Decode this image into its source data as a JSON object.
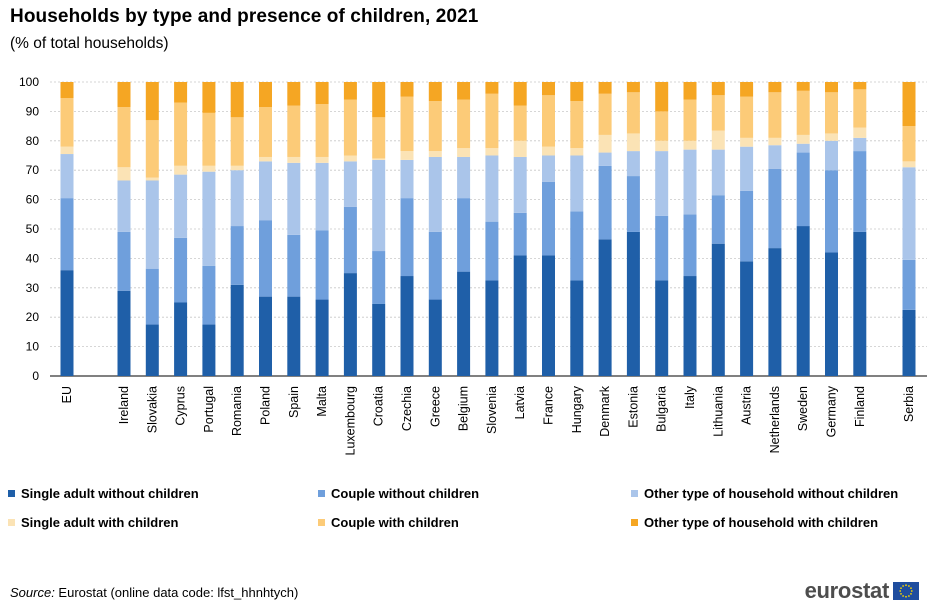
{
  "header": {
    "title": "Households by type and presence of children, 2021",
    "subtitle": "(% of total households)"
  },
  "chart_data": {
    "type": "bar",
    "stacked": true,
    "title": "Households by type and presence of children, 2021",
    "subtitle": "(% of total households)",
    "ylim": [
      0,
      100
    ],
    "yticks": [
      0,
      10,
      20,
      30,
      40,
      50,
      60,
      70,
      80,
      90,
      100
    ],
    "grid": true,
    "legend_position": "bottom",
    "categories": [
      "EU",
      "Ireland",
      "Slovakia",
      "Cyprus",
      "Portugal",
      "Romania",
      "Poland",
      "Spain",
      "Malta",
      "Luxembourg",
      "Croatia",
      "Czechia",
      "Greece",
      "Belgium",
      "Slovenia",
      "Latvia",
      "France",
      "Hungary",
      "Denmark",
      "Estonia",
      "Bulgaria",
      "Italy",
      "Lithuania",
      "Austria",
      "Netherlands",
      "Sweden",
      "Germany",
      "Finland",
      "Serbia"
    ],
    "series": [
      {
        "name": "Single adult without children",
        "color": "#1f5fa8",
        "values": [
          36,
          29,
          17.5,
          25,
          17.5,
          31,
          27,
          27,
          26,
          35,
          24.5,
          34,
          26,
          35.5,
          32.5,
          41,
          41,
          32.5,
          46.5,
          49,
          32.5,
          34,
          45,
          39,
          43.5,
          51,
          42,
          49,
          22.5
        ]
      },
      {
        "name": "Couple without children",
        "color": "#6f9fdc",
        "values": [
          24.5,
          20,
          19,
          22,
          20,
          20,
          26,
          21,
          23.5,
          22.5,
          18,
          26.5,
          23,
          25,
          20,
          14.5,
          25,
          23.5,
          25,
          19,
          22,
          21,
          16.5,
          24,
          27,
          25,
          28,
          27.5,
          17
        ]
      },
      {
        "name": "Other type of household without children",
        "color": "#aac5ea",
        "values": [
          15,
          17.5,
          30,
          21.5,
          32,
          19,
          20,
          24.5,
          23,
          15.5,
          31,
          13,
          25.5,
          14,
          22.5,
          19,
          9,
          19,
          4.5,
          8.5,
          22,
          22,
          15.5,
          15,
          8,
          3,
          10,
          4.5,
          31.5
        ]
      },
      {
        "name": "Single adult with children",
        "color": "#fbe3b5",
        "values": [
          2.5,
          4.5,
          1,
          3,
          2,
          1.5,
          1.5,
          2,
          2,
          2,
          0.5,
          3,
          2,
          3,
          2.5,
          5.5,
          3,
          2.5,
          6,
          6,
          3.5,
          3,
          6.5,
          3,
          2.5,
          3,
          2.5,
          3.5,
          2
        ]
      },
      {
        "name": "Couple with children",
        "color": "#fccb78",
        "values": [
          16.5,
          20.5,
          19.5,
          21.5,
          18,
          16.5,
          17,
          17.5,
          18,
          19,
          14,
          18.5,
          17,
          16.5,
          18.5,
          12,
          17.5,
          16,
          14,
          14,
          10,
          14,
          12,
          14,
          15.5,
          15,
          14,
          13,
          12
        ]
      },
      {
        "name": "Other type of household with children",
        "color": "#f5a623",
        "values": [
          5.5,
          8.5,
          13,
          7,
          10.5,
          12,
          8.5,
          8,
          7.5,
          6,
          12,
          5,
          6.5,
          6,
          4,
          8,
          4.5,
          6.5,
          4,
          3.5,
          10,
          6,
          4.5,
          5,
          3.5,
          3,
          3.5,
          2.5,
          15
        ]
      }
    ]
  },
  "legend": [
    "Single adult without children",
    "Couple without children",
    "Other type of household without children",
    "Single adult with children",
    "Couple with children",
    "Other type of household with children"
  ],
  "footer": {
    "source_label": "Source:",
    "source_text": " Eurostat (online data code: lfst_hhnhtych)",
    "logo_text": "eurostat"
  }
}
